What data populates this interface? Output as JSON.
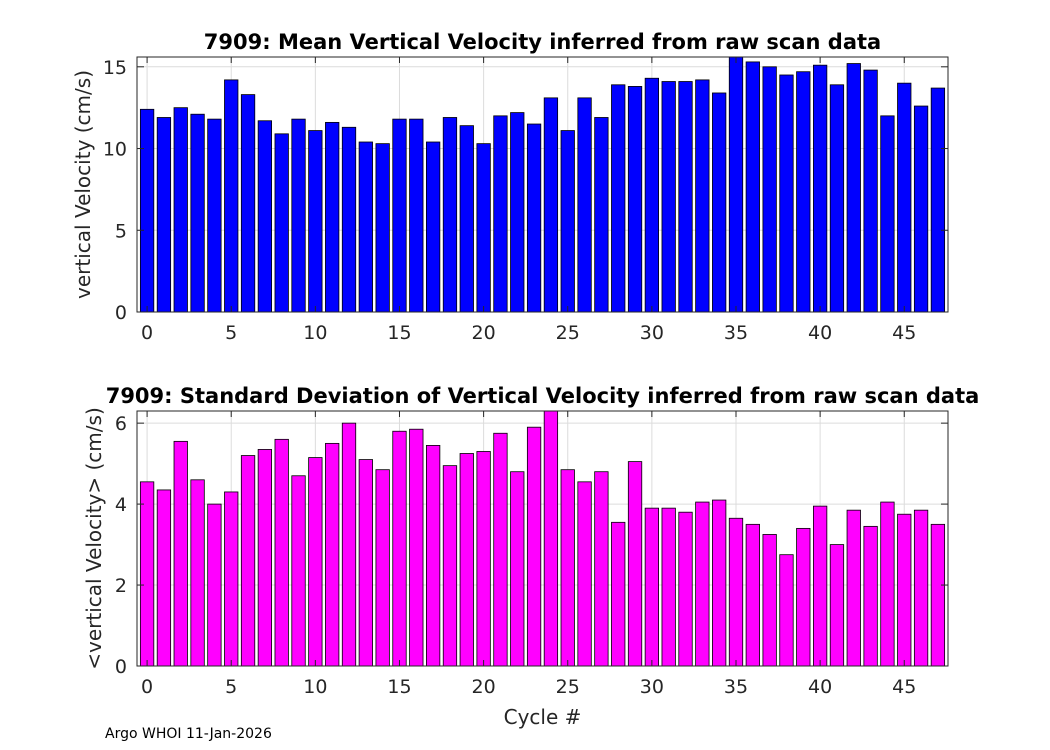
{
  "footer": "Argo WHOI 11-Jan-2026",
  "chart_data": [
    {
      "type": "bar",
      "title": "7909: Mean Vertical Velocity inferred from raw scan data",
      "xlabel": "",
      "ylabel": "vertical Velocity (cm/s)",
      "xlim": [
        -0.6,
        47.6
      ],
      "ylim": [
        0,
        15.6
      ],
      "xticks": [
        0,
        5,
        10,
        15,
        20,
        25,
        30,
        35,
        40,
        45
      ],
      "yticks": [
        0,
        5,
        10,
        15
      ],
      "bar_color": "#0000ff",
      "x": [
        0,
        1,
        2,
        3,
        4,
        5,
        6,
        7,
        8,
        9,
        10,
        11,
        12,
        13,
        14,
        15,
        16,
        17,
        18,
        19,
        20,
        21,
        22,
        23,
        24,
        25,
        26,
        27,
        28,
        29,
        30,
        31,
        32,
        33,
        34,
        35,
        36,
        37,
        38,
        39,
        40,
        41,
        42,
        43,
        44,
        45,
        46,
        47
      ],
      "values": [
        12.4,
        11.9,
        12.5,
        12.1,
        11.8,
        14.2,
        13.3,
        11.7,
        10.9,
        11.8,
        11.1,
        11.6,
        11.3,
        10.4,
        10.3,
        11.8,
        11.8,
        10.4,
        11.9,
        11.4,
        10.3,
        12.0,
        12.2,
        11.5,
        13.1,
        11.1,
        13.1,
        11.9,
        13.9,
        13.8,
        14.3,
        14.1,
        14.1,
        14.2,
        13.4,
        15.7,
        15.3,
        15.0,
        14.5,
        14.7,
        15.1,
        13.9,
        15.2,
        14.8,
        12.0,
        14.0,
        12.6,
        13.7
      ]
    },
    {
      "type": "bar",
      "title": "7909: Standard Deviation of Vertical Velocity inferred from raw scan data",
      "xlabel": "Cycle #",
      "ylabel": "<vertical Velocity> (cm/s)",
      "xlim": [
        -0.6,
        47.6
      ],
      "ylim": [
        0,
        6.3
      ],
      "xticks": [
        0,
        5,
        10,
        15,
        20,
        25,
        30,
        35,
        40,
        45
      ],
      "yticks": [
        0,
        2,
        4,
        6
      ],
      "bar_color": "#ff00ff",
      "x": [
        0,
        1,
        2,
        3,
        4,
        5,
        6,
        7,
        8,
        9,
        10,
        11,
        12,
        13,
        14,
        15,
        16,
        17,
        18,
        19,
        20,
        21,
        22,
        23,
        24,
        25,
        26,
        27,
        28,
        29,
        30,
        31,
        32,
        33,
        34,
        35,
        36,
        37,
        38,
        39,
        40,
        41,
        42,
        43,
        44,
        45,
        46,
        47
      ],
      "values": [
        4.55,
        4.35,
        5.55,
        4.6,
        4.0,
        4.3,
        5.2,
        5.35,
        5.6,
        4.7,
        5.15,
        5.5,
        6.0,
        5.1,
        4.85,
        5.8,
        5.85,
        5.45,
        4.95,
        5.25,
        5.3,
        5.75,
        4.8,
        5.9,
        6.3,
        4.85,
        4.55,
        4.8,
        3.55,
        5.05,
        3.9,
        3.9,
        3.8,
        4.05,
        4.1,
        3.65,
        3.5,
        3.25,
        2.75,
        3.4,
        3.95,
        3.0,
        3.85,
        3.45,
        4.05,
        3.75,
        3.85,
        3.5
      ]
    }
  ]
}
